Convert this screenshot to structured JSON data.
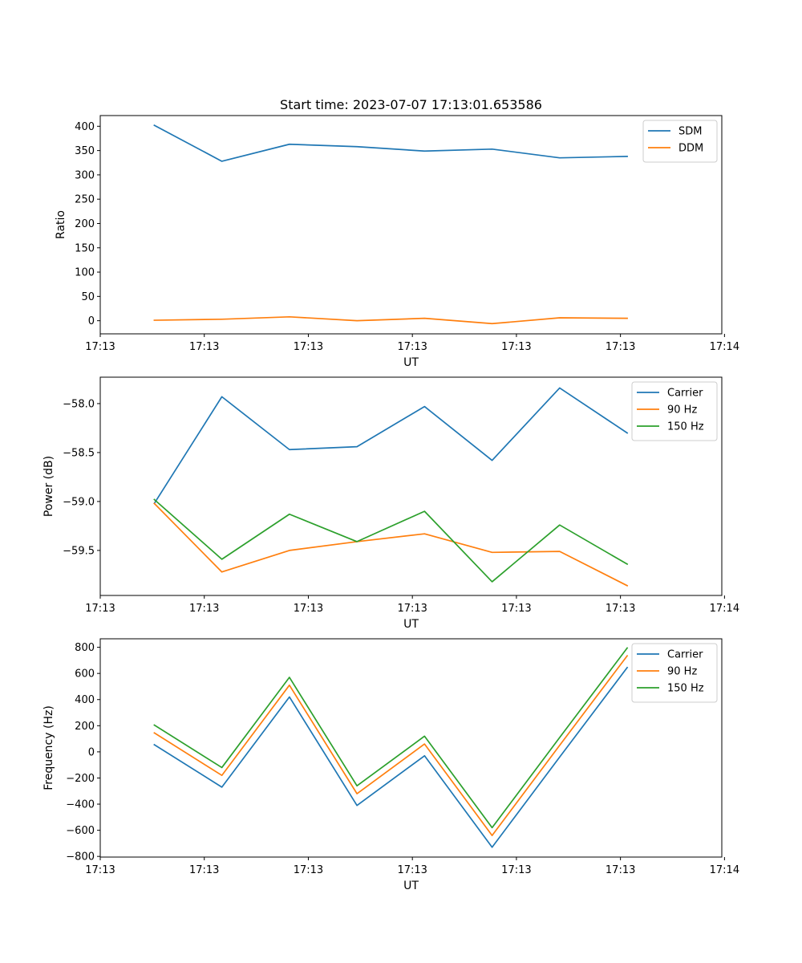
{
  "figure": {
    "title": "Start time: 2023-07-07 17:13:01.653586"
  },
  "chart_data": [
    {
      "type": "line",
      "title": "Start time: 2023-07-07 17:13:01.653586",
      "xlabel": "UT",
      "ylabel": "Ratio",
      "x": [
        1,
        2,
        3,
        4,
        5,
        6,
        7,
        8
      ],
      "xlim": [
        0.2,
        9.4
      ],
      "xticks": [
        0.2,
        1.74,
        3.28,
        4.82,
        6.36,
        7.9,
        9.44
      ],
      "xtick_labels": [
        "17:13",
        "17:13",
        "17:13",
        "17:13",
        "17:13",
        "17:13",
        "17:14"
      ],
      "ylim": [
        -27,
        422
      ],
      "yticks": [
        0,
        50,
        100,
        150,
        200,
        250,
        300,
        350,
        400
      ],
      "ytick_labels": [
        "0",
        "50",
        "100",
        "150",
        "200",
        "250",
        "300",
        "350",
        "400"
      ],
      "legend": "top-right",
      "series": [
        {
          "name": "SDM",
          "color": "#1f77b4",
          "values": [
            402,
            328,
            363,
            358,
            349,
            353,
            335,
            338
          ]
        },
        {
          "name": "DDM",
          "color": "#ff7f0e",
          "values": [
            1,
            3,
            8,
            0,
            5,
            -6,
            6,
            5
          ]
        }
      ]
    },
    {
      "type": "line",
      "title": "",
      "xlabel": "UT",
      "ylabel": "Power (dB)",
      "x": [
        1,
        2,
        3,
        4,
        5,
        6,
        7,
        8
      ],
      "xlim": [
        0.2,
        9.4
      ],
      "xticks": [
        0.2,
        1.74,
        3.28,
        4.82,
        6.36,
        7.9,
        9.44
      ],
      "xtick_labels": [
        "17:13",
        "17:13",
        "17:13",
        "17:13",
        "17:13",
        "17:13",
        "17:14"
      ],
      "ylim": [
        -59.96,
        -57.73
      ],
      "yticks": [
        -59.5,
        -59.0,
        -58.5,
        -58.0
      ],
      "ytick_labels": [
        "−59.5",
        "−59.0",
        "−58.5",
        "−58.0"
      ],
      "legend": "top-right",
      "series": [
        {
          "name": "Carrier",
          "color": "#1f77b4",
          "values": [
            -59.02,
            -57.93,
            -58.47,
            -58.44,
            -58.03,
            -58.58,
            -57.84,
            -58.3
          ]
        },
        {
          "name": "90 Hz",
          "color": "#ff7f0e",
          "values": [
            -59.02,
            -59.72,
            -59.5,
            -59.41,
            -59.33,
            -59.52,
            -59.51,
            -59.86
          ]
        },
        {
          "name": "150 Hz",
          "color": "#2ca02c",
          "values": [
            -58.98,
            -59.59,
            -59.13,
            -59.41,
            -59.1,
            -59.82,
            -59.24,
            -59.64
          ]
        }
      ]
    },
    {
      "type": "line",
      "title": "",
      "xlabel": "UT",
      "ylabel": "Frequency (Hz)",
      "x": [
        1,
        2,
        3,
        4,
        5,
        6,
        7,
        8
      ],
      "xlim": [
        0.2,
        9.4
      ],
      "xticks": [
        0.2,
        1.74,
        3.28,
        4.82,
        6.36,
        7.9,
        9.44
      ],
      "xtick_labels": [
        "17:13",
        "17:13",
        "17:13",
        "17:13",
        "17:13",
        "17:13",
        "17:14"
      ],
      "ylim": [
        -805,
        865
      ],
      "yticks": [
        -800,
        -600,
        -400,
        -200,
        0,
        200,
        400,
        600,
        800
      ],
      "ytick_labels": [
        "−800",
        "−600",
        "−400",
        "−200",
        "0",
        "200",
        "400",
        "600",
        "800"
      ],
      "legend": "top-right",
      "series": [
        {
          "name": "Carrier",
          "color": "#1f77b4",
          "values": [
            55,
            -270,
            420,
            -410,
            -30,
            -730,
            -40,
            645
          ]
        },
        {
          "name": "90 Hz",
          "color": "#ff7f0e",
          "values": [
            145,
            -180,
            510,
            -320,
            60,
            -640,
            50,
            735
          ]
        },
        {
          "name": "150 Hz",
          "color": "#2ca02c",
          "values": [
            205,
            -120,
            570,
            -260,
            120,
            -580,
            110,
            795
          ]
        }
      ]
    }
  ]
}
